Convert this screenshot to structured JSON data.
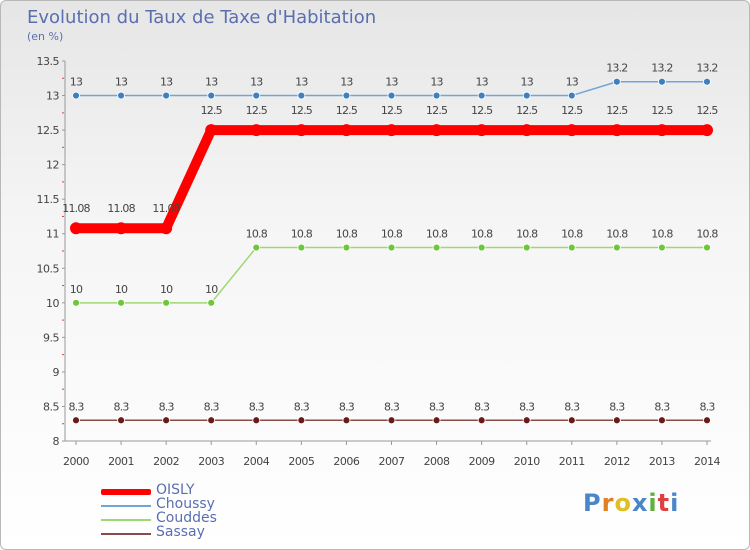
{
  "header": {
    "title": "Evolution du Taux de Taxe d'Habitation",
    "unit": "(en %)"
  },
  "logo": {
    "text": "Proxiti"
  },
  "chart_data": {
    "type": "line",
    "title": "Evolution du Taux de Taxe d'Habitation",
    "ylabel": "(en %)",
    "xlabel": "",
    "ylim": [
      8,
      13.5
    ],
    "yticks": [
      8,
      8.5,
      9,
      9.5,
      10,
      10.5,
      11,
      11.5,
      12,
      12.5,
      13,
      13.5
    ],
    "x": [
      "2000",
      "2001",
      "2002",
      "2003",
      "2004",
      "2005",
      "2006",
      "2007",
      "2008",
      "2009",
      "2010",
      "2011",
      "2012",
      "2013",
      "2014"
    ],
    "grid": false,
    "legend_position": "bottom-left",
    "series": [
      {
        "name": "OISLY",
        "color": "#ff0000",
        "emphasis": true,
        "values": [
          11.08,
          11.08,
          11.08,
          12.5,
          12.5,
          12.5,
          12.5,
          12.5,
          12.5,
          12.5,
          12.5,
          12.5,
          12.5,
          12.5,
          12.5
        ]
      },
      {
        "name": "Choussy",
        "color": "#6fa6d6",
        "marker": "#3d7fbf",
        "values": [
          13,
          13,
          13,
          13,
          13,
          13,
          13,
          13,
          13,
          13,
          13,
          13,
          13.2,
          13.2,
          13.2
        ]
      },
      {
        "name": "Couddes",
        "color": "#9dd870",
        "marker": "#6cc83a",
        "values": [
          10,
          10,
          10,
          10,
          10.8,
          10.8,
          10.8,
          10.8,
          10.8,
          10.8,
          10.8,
          10.8,
          10.8,
          10.8,
          10.8
        ]
      },
      {
        "name": "Sassay",
        "color": "#8a4a4a",
        "marker": "#6a1a1a",
        "values": [
          8.3,
          8.3,
          8.3,
          8.3,
          8.3,
          8.3,
          8.3,
          8.3,
          8.3,
          8.3,
          8.3,
          8.3,
          8.3,
          8.3,
          8.3
        ]
      }
    ]
  }
}
